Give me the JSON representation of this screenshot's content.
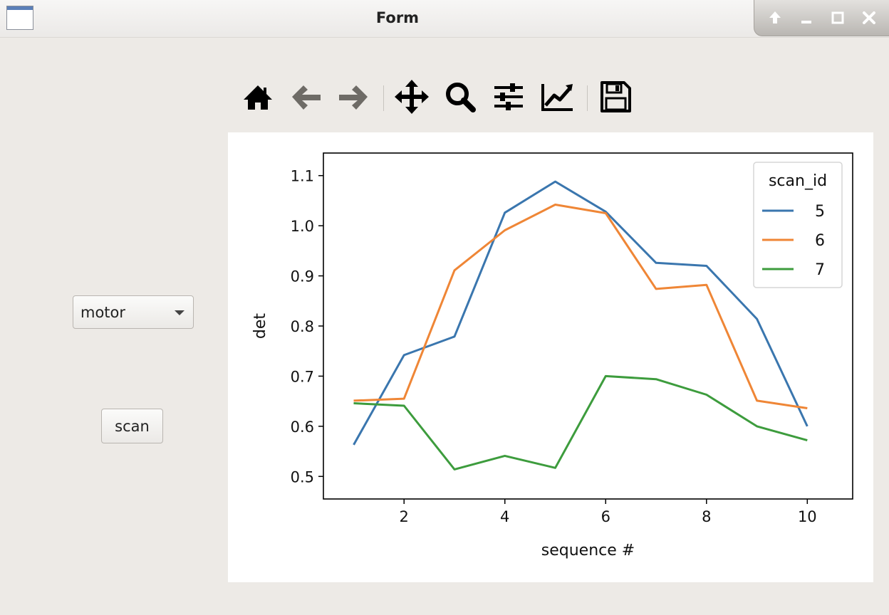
{
  "window": {
    "title": "Form",
    "controls": [
      "shade-icon",
      "minimize-icon",
      "maximize-icon",
      "close-icon"
    ]
  },
  "toolbar": {
    "buttons": [
      "home-icon",
      "back-icon",
      "forward-icon",
      "pan-icon",
      "zoom-icon",
      "configure-subplots-icon",
      "edit-axis-icon",
      "save-icon"
    ]
  },
  "controls": {
    "combo_value": "motor",
    "scan_label": "scan"
  },
  "colors": {
    "series_5": "#3a76ae",
    "series_6": "#ef8636",
    "series_7": "#3d9c3d"
  },
  "chart_data": {
    "type": "line",
    "title": "",
    "xlabel": "sequence #",
    "ylabel": "det",
    "xlim": [
      0.4,
      10.9
    ],
    "ylim": [
      0.455,
      1.145
    ],
    "xticks": [
      2,
      4,
      6,
      8,
      10
    ],
    "yticks": [
      0.5,
      0.6,
      0.7,
      0.8,
      0.9,
      1.0,
      1.1
    ],
    "grid": false,
    "legend": {
      "title": "scan_id",
      "placement": "top-right"
    },
    "x": [
      1,
      2,
      3,
      4,
      5,
      6,
      7,
      8,
      9,
      10
    ],
    "series": [
      {
        "name": "5",
        "values": [
          0.563,
          0.742,
          0.779,
          1.026,
          1.088,
          1.028,
          0.926,
          0.92,
          0.814,
          0.6
        ]
      },
      {
        "name": "6",
        "values": [
          0.651,
          0.655,
          0.911,
          0.991,
          1.042,
          1.025,
          0.874,
          0.882,
          0.651,
          0.636
        ]
      },
      {
        "name": "7",
        "values": [
          0.646,
          0.641,
          0.514,
          0.541,
          0.517,
          0.7,
          0.694,
          0.663,
          0.6,
          0.572
        ]
      }
    ]
  }
}
